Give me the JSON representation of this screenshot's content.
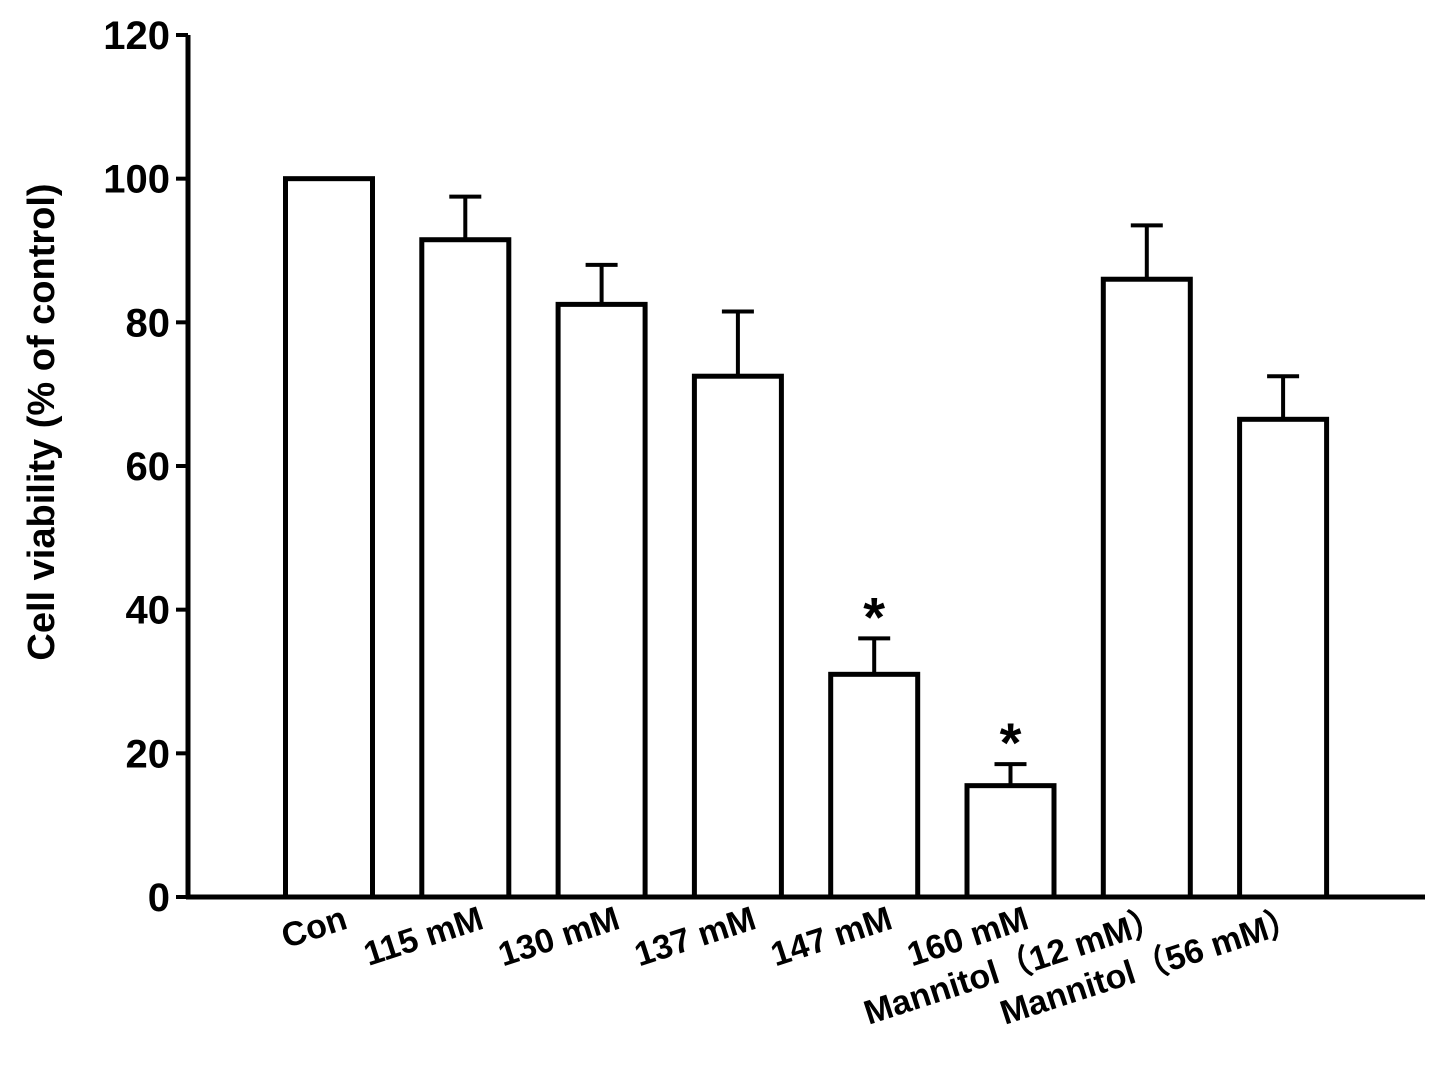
{
  "chart_data": {
    "type": "bar",
    "title": "",
    "xlabel": "",
    "ylabel": "Cell viability (% of control)",
    "ylim": [
      0,
      120
    ],
    "yticks": [
      0,
      20,
      40,
      60,
      80,
      100,
      120
    ],
    "ytick_labels": [
      "0",
      "20",
      "40",
      "60",
      "80",
      "100",
      "120"
    ],
    "grid": false,
    "categories": [
      "Con",
      "115 mM",
      "130 mM",
      "137  mM",
      "147 mM",
      "160 mM",
      "Mannitol（12 mM）",
      "Mannitol（56 mM）"
    ],
    "values": [
      100,
      91.5,
      82.5,
      72.5,
      31,
      15.5,
      86,
      66.5
    ],
    "error_upper": [
      0,
      6,
      5.5,
      9,
      5,
      3,
      7.5,
      6
    ],
    "annotations": [
      "",
      "",
      "",
      "",
      "*",
      "*",
      "",
      ""
    ],
    "colors": {
      "bar_fill": "#ffffff",
      "bar_stroke": "#000000",
      "axis": "#000000"
    }
  }
}
